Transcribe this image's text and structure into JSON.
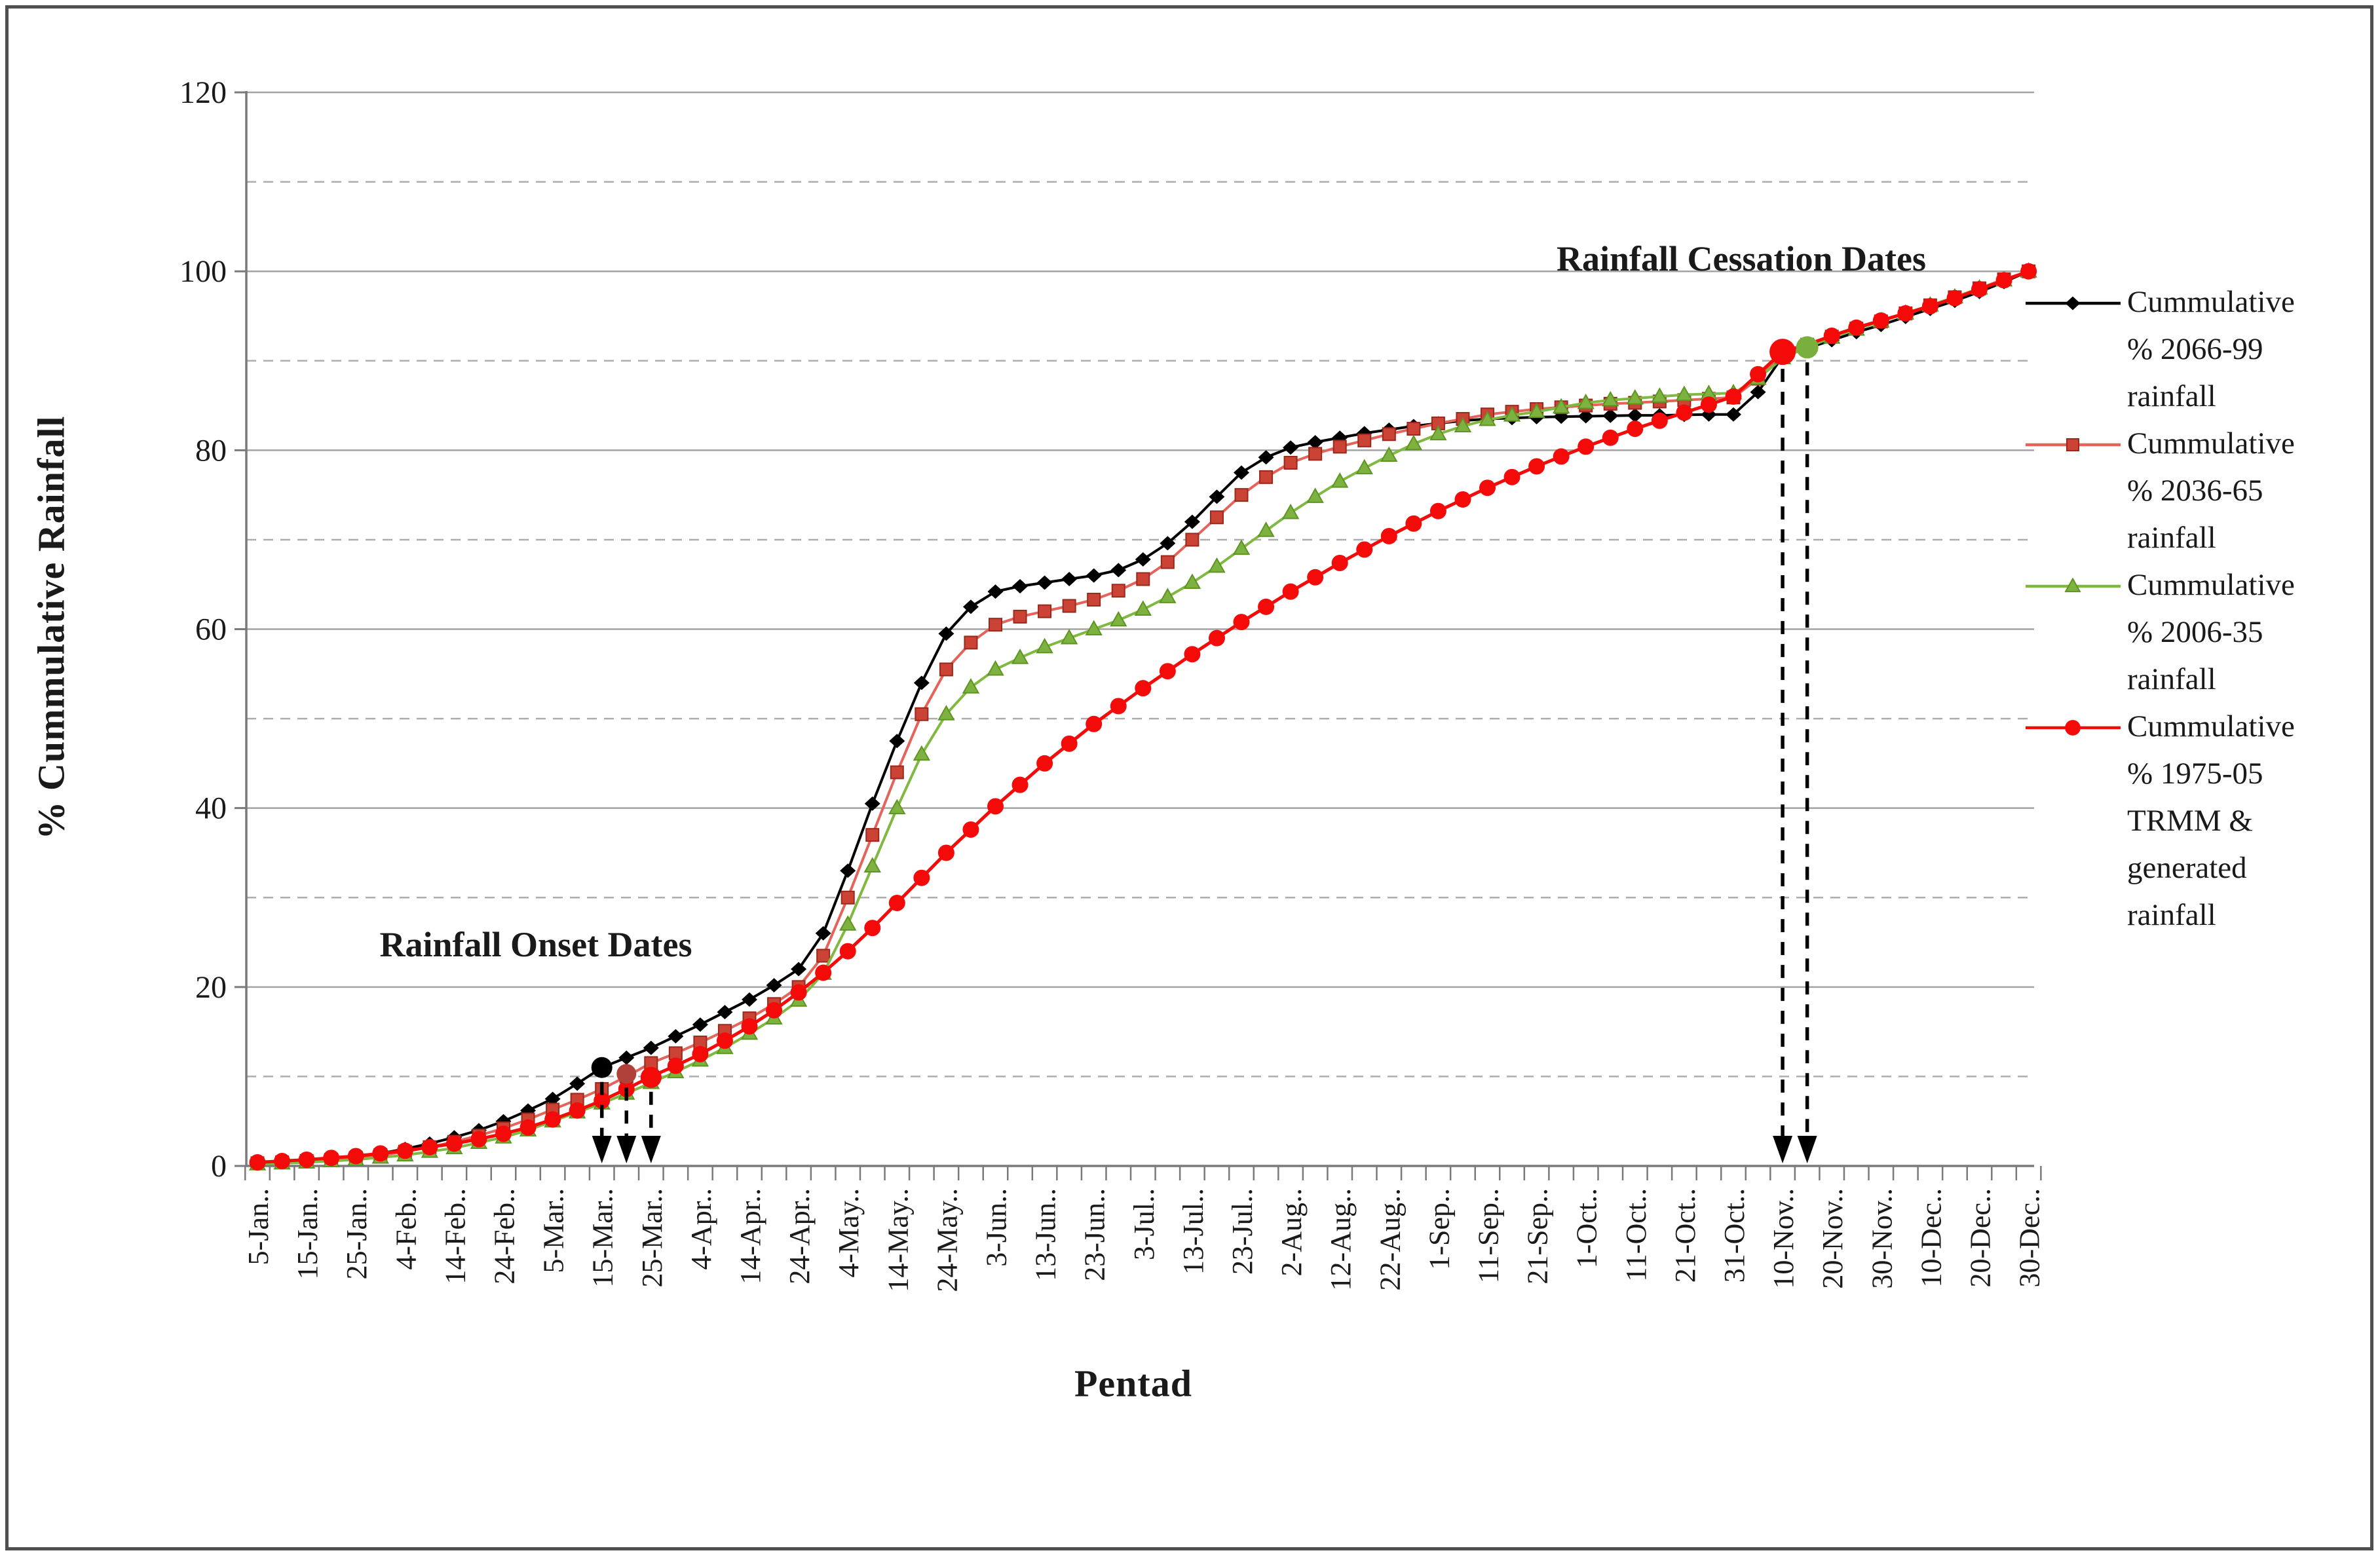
{
  "figure": {
    "background": "#FFFFFF",
    "border_color": "#4F4F4F"
  },
  "chart_data": {
    "type": "line",
    "title": "",
    "xlabel": "Pentad",
    "ylabel": "% Cummulative Rainfall",
    "ylim": [
      0,
      120
    ],
    "yticks": [
      0,
      20,
      40,
      60,
      80,
      100,
      120
    ],
    "minor_gridlines": [
      10,
      30,
      50,
      70,
      90,
      110
    ],
    "grid": {
      "major": "solid",
      "minor": "dashed"
    },
    "legend_position": "right",
    "n_points": 73,
    "x_label_suffix": "..",
    "x_labels": [
      "5-Jan",
      "15-Jan",
      "25-Jan",
      "4-Feb",
      "14-Feb",
      "24-Feb",
      "5-Mar",
      "15-Mar",
      "25-Mar",
      "4-Apr",
      "14-Apr",
      "24-Apr",
      "4-May",
      "14-May",
      "24-May",
      "3-Jun",
      "13-Jun",
      "23-Jun",
      "3-Jul",
      "13-Jul",
      "23-Jul",
      "2-Aug",
      "12-Aug",
      "22-Aug",
      "1-Sep",
      "11-Sep",
      "21-Sep",
      "1-Oct",
      "11-Oct",
      "21-Oct",
      "31-Oct",
      "10-Nov",
      "20-Nov",
      "30-Nov",
      "10-Dec",
      "20-Dec",
      "30-Dec"
    ],
    "series": [
      {
        "name": "Cummulative % 2066-99 rainfall",
        "legend_lines": [
          "Cummulative",
          "%  2066-99",
          "rainfall"
        ],
        "line_color": "#000000",
        "marker": "diamond",
        "marker_fill": "#000000",
        "marker_edge": "#000000",
        "values": [
          0.3,
          0.4,
          0.6,
          0.8,
          1.0,
          1.4,
          1.9,
          2.5,
          3.2,
          4.0,
          5.0,
          6.2,
          7.5,
          9.2,
          11.0,
          12.1,
          13.2,
          14.5,
          15.8,
          17.2,
          18.6,
          20.2,
          22.0,
          26.0,
          33.0,
          40.5,
          47.5,
          54.0,
          59.5,
          62.5,
          64.2,
          64.8,
          65.2,
          65.6,
          66.0,
          66.6,
          67.8,
          69.6,
          72.0,
          74.8,
          77.5,
          79.2,
          80.3,
          80.9,
          81.4,
          81.9,
          82.3,
          82.7,
          83.0,
          83.3,
          83.5,
          83.6,
          83.7,
          83.75,
          83.8,
          83.85,
          83.9,
          83.9,
          83.95,
          84.0,
          84.0,
          86.5,
          90.5,
          91.4,
          92.3,
          93.2,
          94.0,
          94.9,
          95.8,
          96.7,
          97.7,
          98.8,
          100
        ]
      },
      {
        "name": "Cummulative % 2036-65 rainfall",
        "legend_lines": [
          "Cummulative",
          "% 2036-65",
          "rainfall"
        ],
        "line_color": "#E4635A",
        "marker": "square",
        "marker_fill": "#CB4335",
        "marker_edge": "#99281D",
        "values": [
          0.3,
          0.4,
          0.55,
          0.7,
          0.9,
          1.2,
          1.6,
          2.1,
          2.7,
          3.4,
          4.2,
          5.2,
          6.3,
          7.4,
          8.6,
          10.0,
          11.5,
          12.6,
          13.8,
          15.1,
          16.5,
          18.1,
          20.0,
          23.5,
          30.0,
          37.0,
          44.0,
          50.5,
          55.5,
          58.5,
          60.5,
          61.4,
          62.0,
          62.6,
          63.3,
          64.3,
          65.6,
          67.5,
          70.0,
          72.5,
          75.0,
          77.0,
          78.6,
          79.6,
          80.4,
          81.1,
          81.8,
          82.4,
          83.0,
          83.5,
          84.0,
          84.3,
          84.6,
          84.8,
          85.0,
          85.2,
          85.3,
          85.45,
          85.6,
          85.75,
          85.9,
          88.0,
          90.8,
          91.8,
          92.7,
          93.6,
          94.4,
          95.3,
          96.2,
          97.1,
          98.1,
          99.1,
          100
        ]
      },
      {
        "name": "Cummulative % 2006-35 rainfall",
        "legend_lines": [
          "Cummulative",
          "% 2006-35",
          "rainfall"
        ],
        "line_color": "#7FB93F",
        "marker": "triangle",
        "marker_fill": "#7DB240",
        "marker_edge": "#5E9522",
        "values": [
          0.2,
          0.3,
          0.4,
          0.55,
          0.7,
          0.95,
          1.2,
          1.6,
          2.0,
          2.6,
          3.2,
          4.0,
          5.0,
          6.0,
          7.0,
          8.1,
          9.3,
          10.5,
          11.8,
          13.2,
          14.8,
          16.5,
          18.5,
          21.5,
          27.0,
          33.5,
          40.0,
          46.0,
          50.5,
          53.5,
          55.5,
          56.8,
          58.0,
          59.0,
          60.0,
          61.0,
          62.2,
          63.6,
          65.2,
          67.0,
          69.0,
          71.0,
          73.0,
          74.8,
          76.5,
          78.0,
          79.4,
          80.7,
          81.8,
          82.7,
          83.4,
          83.9,
          84.3,
          84.8,
          85.3,
          85.6,
          85.8,
          86.0,
          86.2,
          86.3,
          86.4,
          88.0,
          90.3,
          91.5,
          92.6,
          93.5,
          94.4,
          95.3,
          96.2,
          97.1,
          98.1,
          99.0,
          100
        ]
      },
      {
        "name": "Cummulative % 1975-05 TRMM & generated rainfall",
        "legend_lines": [
          "Cummulative",
          "% 1975-05",
          "TRMM &",
          "generated",
          "rainfall"
        ],
        "line_color": "#F50A0A",
        "marker": "circle",
        "marker_fill": "#F50A0A",
        "marker_edge": "#F50A0A",
        "values": [
          0.4,
          0.55,
          0.7,
          0.9,
          1.1,
          1.4,
          1.7,
          2.1,
          2.5,
          3.0,
          3.6,
          4.3,
          5.2,
          6.2,
          7.3,
          8.6,
          10.0,
          11.2,
          12.5,
          14.0,
          15.6,
          17.4,
          19.4,
          21.6,
          24.0,
          26.6,
          29.4,
          32.2,
          35.0,
          37.6,
          40.2,
          42.6,
          45.0,
          47.2,
          49.4,
          51.4,
          53.4,
          55.3,
          57.2,
          59.0,
          60.8,
          62.5,
          64.2,
          65.8,
          67.4,
          68.9,
          70.4,
          71.8,
          73.2,
          74.5,
          75.8,
          77.0,
          78.2,
          79.3,
          80.4,
          81.4,
          82.4,
          83.3,
          84.2,
          85.1,
          86.0,
          88.5,
          91.0,
          91.8,
          92.8,
          93.7,
          94.5,
          95.3,
          96.1,
          97.0,
          98.0,
          99.0,
          100
        ]
      }
    ],
    "annotations": {
      "onset": {
        "label": "Rainfall Onset Dates",
        "dots": [
          {
            "pentad": 14,
            "value": 11.0,
            "color": "#000000",
            "r": 16
          },
          {
            "pentad": 15,
            "value": 10.3,
            "color": "#B04038",
            "r": 15
          },
          {
            "pentad": 16,
            "value": 9.9,
            "color": "#F50A0A",
            "r": 16
          }
        ]
      },
      "cessation": {
        "label": "Rainfall Cessation Dates",
        "dots": [
          {
            "pentad": 62,
            "value": 91.0,
            "color": "#F50A0A",
            "r": 20
          },
          {
            "pentad": 63,
            "value": 91.5,
            "color": "#79AF3D",
            "r": 17
          }
        ]
      }
    },
    "style": {
      "axis_color": "#7A7A7A",
      "major_grid_color": "#A3A3A3",
      "minor_grid_color": "#ADADAD",
      "text_color": "#1a1a1a",
      "arrow_color": "#000000"
    }
  }
}
